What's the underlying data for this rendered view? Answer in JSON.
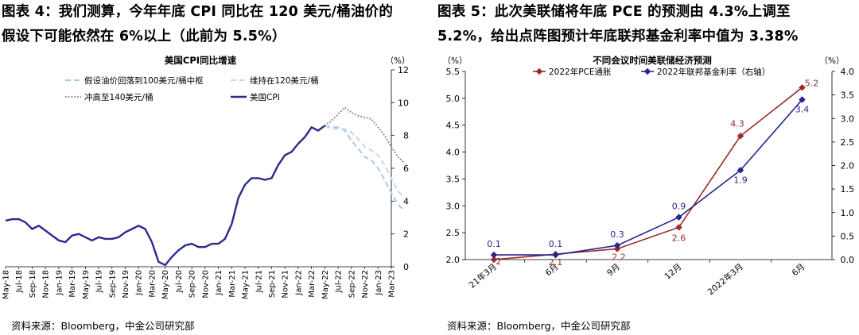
{
  "left_figure": {
    "title_line1": "图表 4：我们测算，今年年底 CPI 同比在 120 美元/桶油价的",
    "title_line2": "假设下可能依然在 6%以上（此前为 5.5%）",
    "source": "资料来源：Bloomberg，中金公司研究部"
  },
  "right_figure": {
    "title_line1": "图表 5：此次美联储将年底 PCE 的预测由 4.3%上调至",
    "title_line2": "5.2%，给出点阵图预计年底联邦基金利率中值为 3.38%",
    "source": "资料来源：Bloomberg，中金公司研究部"
  },
  "chart_data": [
    {
      "type": "line",
      "title": "美国CPI同比增速",
      "y_unit": "（%）",
      "ylim": [
        0,
        12
      ],
      "yticks": [
        "0",
        "2",
        "4",
        "6",
        "8",
        "10",
        "12"
      ],
      "x_tick_labels": [
        "May-18",
        "Jul-18",
        "Sep-18",
        "Nov-18",
        "Jan-19",
        "Mar-19",
        "May-19",
        "Jul-19",
        "Sep-19",
        "Nov-19",
        "Jan-20",
        "Mar-20",
        "May-20",
        "Jul-20",
        "Sep-20",
        "Nov-20",
        "Jan-21",
        "Mar-21",
        "May-21",
        "Jul-21",
        "Sep-21",
        "Nov-21",
        "Jan-22",
        "Mar-22",
        "May-22",
        "Jul-22",
        "Sep-22",
        "Nov-22",
        "Jan-23",
        "Mar-23"
      ],
      "legend": [
        "假设油价回落到100美元/桶中枢",
        "维持在120美元/桶",
        "冲高至140美元/桶",
        "美国CPI"
      ],
      "series": [
        {
          "name": "美国CPI",
          "color": "#2b2a8c",
          "style": "solid",
          "start_month": 0,
          "values": [
            2.8,
            2.9,
            2.9,
            2.7,
            2.3,
            2.5,
            2.2,
            1.9,
            1.6,
            1.5,
            1.9,
            2.0,
            1.8,
            1.6,
            1.8,
            1.7,
            1.7,
            1.8,
            2.1,
            2.3,
            2.5,
            2.3,
            1.5,
            0.3,
            0.1,
            0.6,
            1.0,
            1.3,
            1.4,
            1.2,
            1.2,
            1.4,
            1.4,
            1.7,
            2.6,
            4.2,
            5.0,
            5.4,
            5.4,
            5.3,
            5.4,
            6.2,
            6.8,
            7.0,
            7.5,
            7.9,
            8.5,
            8.3,
            8.6
          ]
        },
        {
          "name": "冲高至140美元/桶",
          "color": "#808080",
          "style": "dotted",
          "start_month": 48,
          "values": [
            8.6,
            8.9,
            9.3,
            9.7,
            9.4,
            9.2,
            9.1,
            9.0,
            8.5,
            8.0,
            7.3,
            6.7,
            6.3
          ]
        },
        {
          "name": "维持在120美元/桶",
          "color": "#c5d8ee",
          "style": "dashed",
          "start_month": 48,
          "values": [
            8.6,
            8.4,
            8.4,
            8.4,
            8.2,
            7.8,
            7.3,
            7.1,
            6.8,
            6.2,
            5.4,
            4.6,
            4.2
          ]
        },
        {
          "name": "假设油价回落到100美元/桶中枢",
          "color": "#a9c7e8",
          "style": "dashed",
          "start_month": 48,
          "values": [
            8.6,
            8.5,
            8.5,
            8.3,
            7.7,
            7.2,
            6.7,
            6.5,
            6.0,
            5.3,
            4.5,
            3.8,
            3.4
          ]
        }
      ]
    },
    {
      "type": "line",
      "title": "不同会议时间美联储经济预测",
      "left_unit": "（%）",
      "right_unit": "（%）",
      "ylim_left": [
        2.0,
        5.5
      ],
      "ylim_right": [
        0.0,
        4.0
      ],
      "left_ticks": [
        "2.0",
        "2.5",
        "3.0",
        "3.5",
        "4.0",
        "4.5",
        "5.0",
        "5.5"
      ],
      "right_ticks": [
        "0.0",
        "0.5",
        "1.0",
        "1.5",
        "2.0",
        "2.5",
        "3.0",
        "3.5",
        "4.0"
      ],
      "categories": [
        "21年3月",
        "6月",
        "9月",
        "12月",
        "2022年3月",
        "6月"
      ],
      "series": [
        {
          "name": "2022年PCE通胀",
          "axis": "left",
          "color": "#9b2a2a",
          "values": [
            2.0,
            2.1,
            2.2,
            2.6,
            4.3,
            5.2
          ],
          "labels": [
            "2",
            "2.1",
            "2.2",
            "2.6",
            "4.3",
            "5.2"
          ]
        },
        {
          "name": "2022年联邦基金利率（右轴）",
          "axis": "right",
          "color": "#25258f",
          "values": [
            0.1,
            0.1,
            0.3,
            0.9,
            1.9,
            3.4
          ],
          "labels": [
            "0.1",
            "0.1",
            "0.3",
            "0.9",
            "1.9",
            "3.4"
          ]
        }
      ]
    }
  ]
}
